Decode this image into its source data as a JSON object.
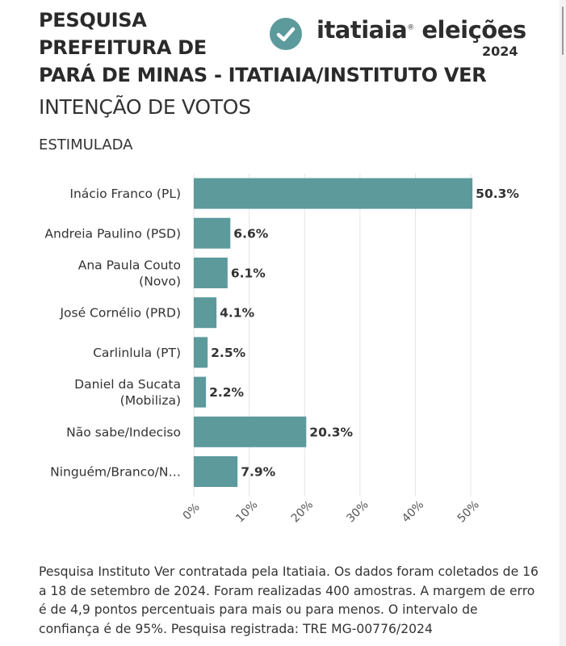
{
  "header": {
    "title_lines": [
      "PESQUISA",
      "PREFEITURA DE",
      "PARÁ DE MINAS - ITATIAIA/INSTITUTO VER"
    ],
    "subtitle": "INTENÇÃO DE VOTOS",
    "filter": "ESTIMULADA"
  },
  "brand": {
    "name": "itatiaia",
    "mark": "®",
    "section": "eleições",
    "year": "2024",
    "icon": "check-circle-icon",
    "accent": "#5c9a9c"
  },
  "footnote": "Pesquisa Instituto Ver contratada pela Itatiaia. Os dados foram coletados de 16 a 18 de setembro de 2024. Foram realizadas 400 amostras. A margem de erro é de 4,9 pontos percentuais para mais ou para menos. O intervalo de confiança é de 95%. Pesquisa registrada: TRE MG-00776/2024",
  "chart_data": {
    "type": "bar",
    "orientation": "horizontal",
    "categories": [
      [
        "Inácio Franco (PL)"
      ],
      [
        "Andreia Paulino (PSD)"
      ],
      [
        "Ana Paula Couto",
        "(Novo)"
      ],
      [
        "José Cornélio (PRD)"
      ],
      [
        "Carlinlula (PT)"
      ],
      [
        "Daniel da Sucata",
        "(Mobiliza)"
      ],
      [
        "Não sabe/Indeciso"
      ],
      [
        "Ninguém/Branco/N…"
      ]
    ],
    "values": [
      50.3,
      6.6,
      6.1,
      4.1,
      2.5,
      2.2,
      20.3,
      7.9
    ],
    "value_labels": [
      "50.3%",
      "6.6%",
      "6.1%",
      "4.1%",
      "2.5%",
      "2.2%",
      "20.3%",
      "7.9%"
    ],
    "xlim": [
      0,
      58
    ],
    "xticks": [
      0,
      10,
      20,
      30,
      40,
      50
    ],
    "xtick_labels": [
      "0%",
      "10%",
      "20%",
      "30%",
      "40%",
      "50%"
    ],
    "grid": true,
    "bar_color": "#5c9a9c",
    "grid_color": "#e5e5e5"
  }
}
